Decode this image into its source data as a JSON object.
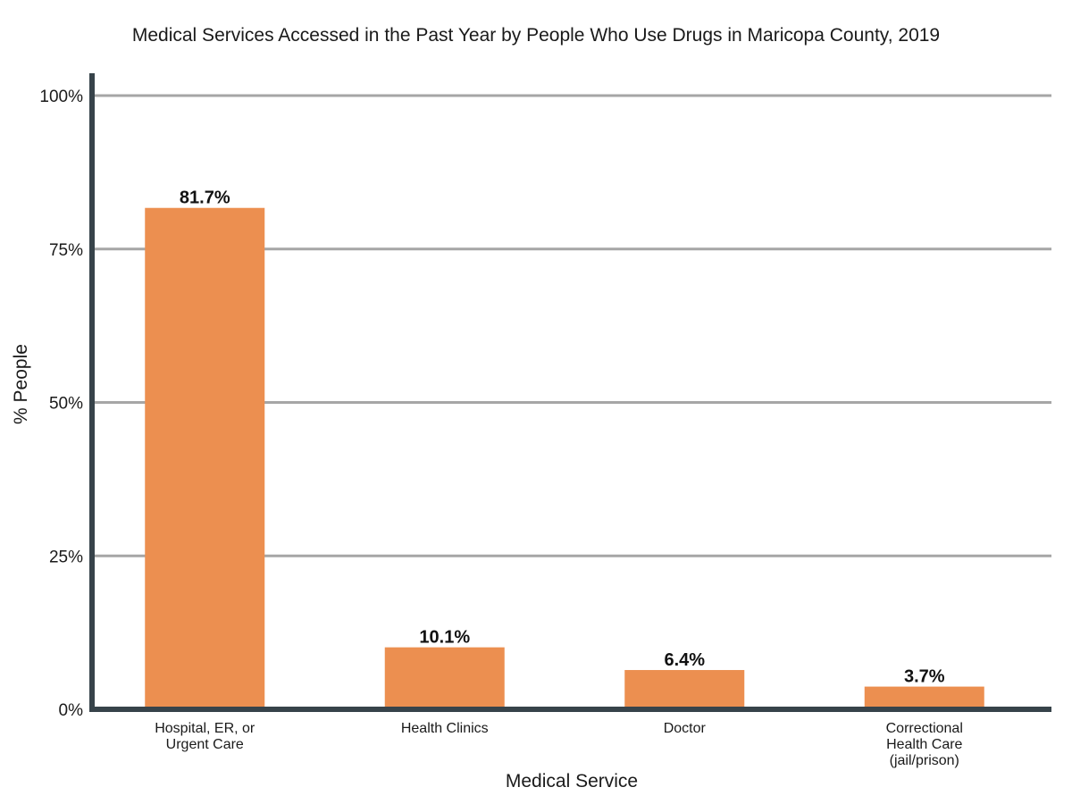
{
  "chart_data": {
    "type": "bar",
    "title": "Medical Services Accessed in the Past Year by People Who Use Drugs in Maricopa County, 2019",
    "xlabel": "Medical Service",
    "ylabel": "% People",
    "ylim": [
      0,
      100
    ],
    "yticks": [
      0,
      25,
      50,
      75,
      100
    ],
    "ytick_labels": [
      "0%",
      "25%",
      "50%",
      "75%",
      "100%"
    ],
    "grid": true,
    "legend": "none",
    "categories": [
      [
        "Hospital, ER, or",
        "Urgent Care"
      ],
      [
        "Health Clinics"
      ],
      [
        "Doctor"
      ],
      [
        "Correctional",
        "Health Care",
        "(jail/prison)"
      ]
    ],
    "values": [
      81.7,
      10.1,
      6.4,
      3.7
    ],
    "value_labels": [
      "81.7%",
      "10.1%",
      "6.4%",
      "3.7%"
    ],
    "colors": {
      "bar": "#ec8f50",
      "axis": "#37434a",
      "grid": "#a6a6a6"
    }
  }
}
